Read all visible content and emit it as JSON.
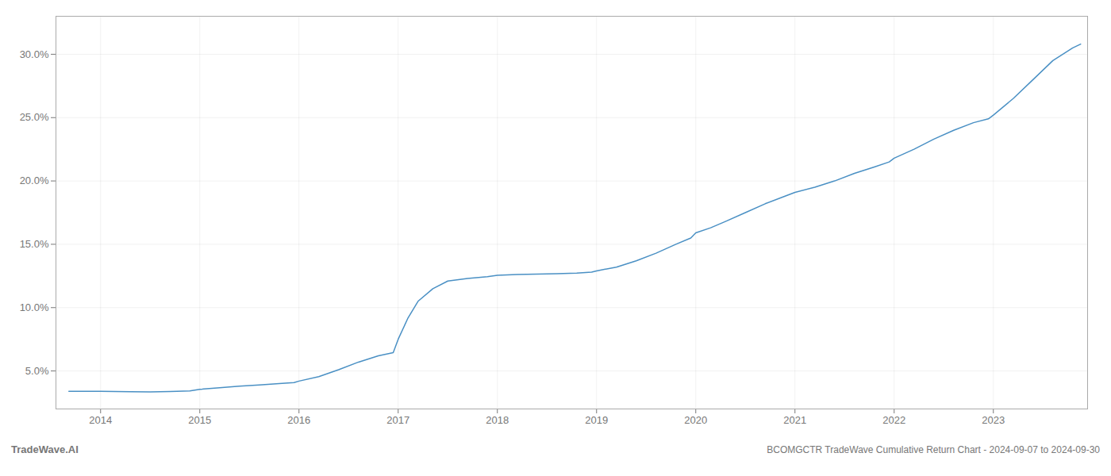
{
  "chart_data": {
    "type": "line",
    "title": "BCOMGCTR TradeWave Cumulative Return Chart - 2024-09-07 to 2024-09-30",
    "annotations": [
      "TradeWave.AI"
    ],
    "color": "#4a90c4",
    "grid": true,
    "x": [
      2013.68,
      2014.0,
      2014.15,
      2014.3,
      2014.5,
      2014.7,
      2014.9,
      2015.0,
      2015.2,
      2015.4,
      2015.6,
      2015.8,
      2015.95,
      2016.0,
      2016.2,
      2016.4,
      2016.6,
      2016.8,
      2016.95,
      2017.0,
      2017.1,
      2017.2,
      2017.35,
      2017.5,
      2017.7,
      2017.9,
      2018.0,
      2018.2,
      2018.4,
      2018.6,
      2018.8,
      2018.95,
      2019.0,
      2019.2,
      2019.4,
      2019.6,
      2019.8,
      2019.95,
      2020.0,
      2020.15,
      2020.3,
      2020.5,
      2020.7,
      2020.9,
      2021.0,
      2021.2,
      2021.4,
      2021.6,
      2021.8,
      2021.95,
      2022.0,
      2022.2,
      2022.4,
      2022.6,
      2022.8,
      2022.95,
      2023.0,
      2023.2,
      2023.4,
      2023.6,
      2023.8,
      2023.88
    ],
    "values": [
      3.4,
      3.4,
      3.38,
      3.36,
      3.35,
      3.38,
      3.42,
      3.55,
      3.68,
      3.8,
      3.9,
      4.0,
      4.08,
      4.2,
      4.55,
      5.1,
      5.7,
      6.2,
      6.45,
      7.5,
      9.2,
      10.5,
      11.5,
      12.1,
      12.3,
      12.45,
      12.55,
      12.62,
      12.65,
      12.68,
      12.72,
      12.8,
      12.9,
      13.2,
      13.7,
      14.3,
      15.0,
      15.5,
      15.9,
      16.3,
      16.8,
      17.5,
      18.2,
      18.8,
      19.1,
      19.5,
      20.0,
      20.6,
      21.1,
      21.5,
      21.8,
      22.5,
      23.3,
      24.0,
      24.6,
      24.9,
      25.2,
      26.5,
      28.0,
      29.5,
      30.5,
      30.8
    ],
    "xlim": [
      2013.55,
      2023.95
    ],
    "xticks": [
      2014,
      2015,
      2016,
      2017,
      2018,
      2019,
      2020,
      2021,
      2022,
      2023
    ],
    "ylim": [
      2.0,
      33.0
    ],
    "yticks": [
      {
        "value": 5.0,
        "label": "5.0%"
      },
      {
        "value": 10.0,
        "label": "10.0%"
      },
      {
        "value": 15.0,
        "label": "15.0%"
      },
      {
        "value": 20.0,
        "label": "20.0%"
      },
      {
        "value": 25.0,
        "label": "25.0%"
      },
      {
        "value": 30.0,
        "label": "30.0%"
      }
    ]
  }
}
